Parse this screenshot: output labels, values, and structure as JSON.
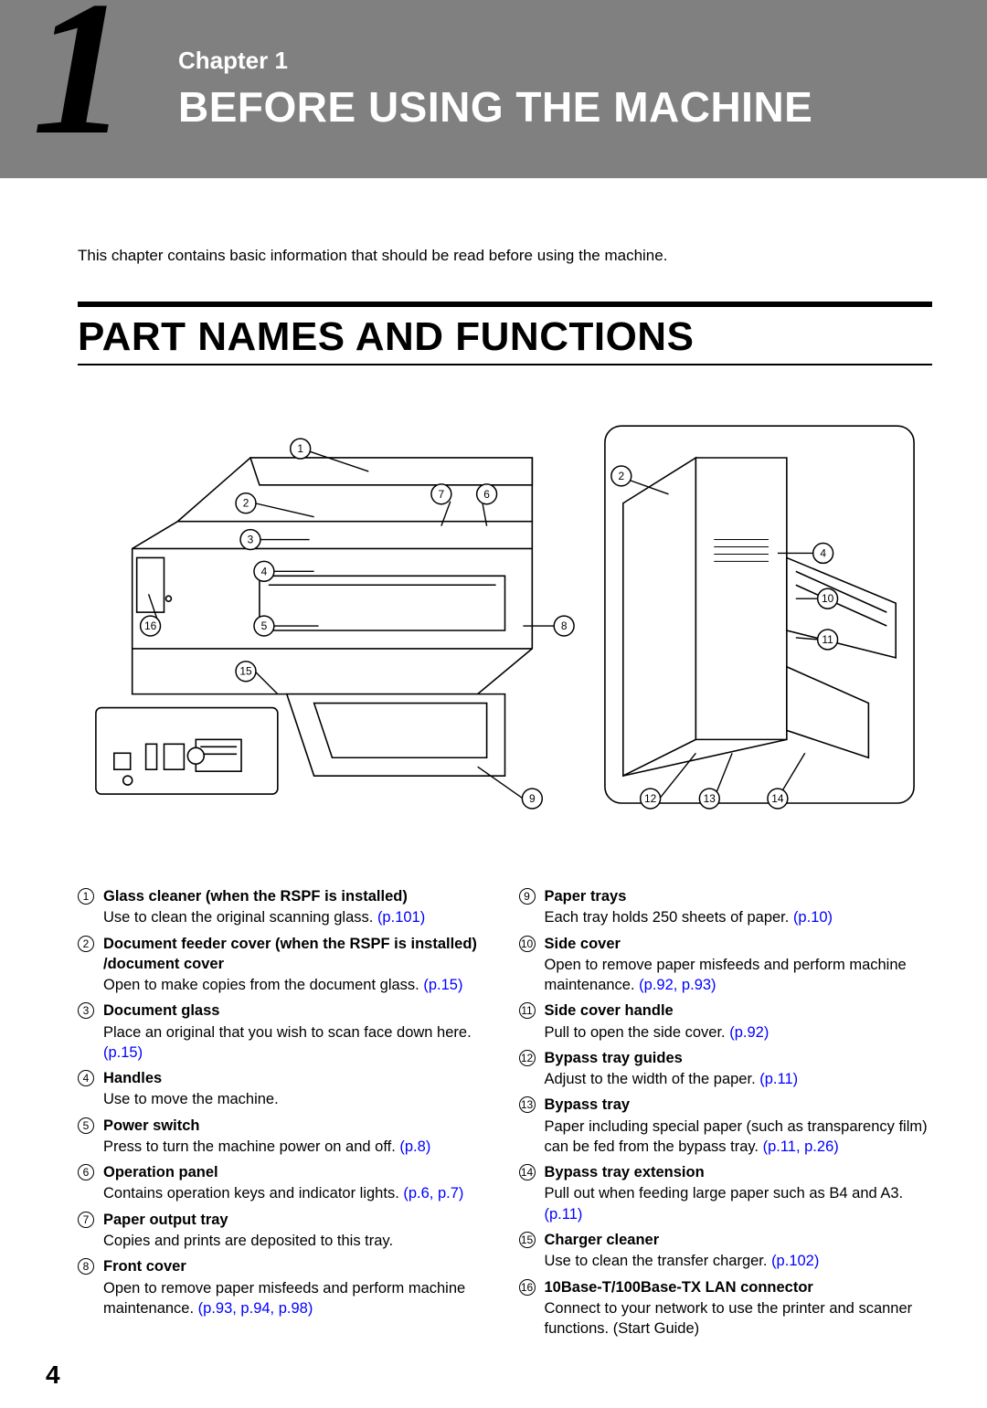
{
  "header": {
    "big_number": "1",
    "chapter_label": "Chapter 1",
    "chapter_title": "BEFORE USING THE MACHINE"
  },
  "intro": "This chapter contains basic information that should be read before using the machine.",
  "section_title": "PART NAMES AND FUNCTIONS",
  "page_number": "4",
  "link_color": "#0000ff",
  "diagram": {
    "callouts_left": [
      "1",
      "2",
      "3",
      "4",
      "5",
      "7",
      "6",
      "8",
      "9",
      "15",
      "16"
    ],
    "callouts_right": [
      "2",
      "4",
      "10",
      "11",
      "12",
      "13",
      "14"
    ]
  },
  "items_left": [
    {
      "n": "1",
      "title": "Glass cleaner (when the RSPF is installed)",
      "desc": "Use to clean the original scanning glass. ",
      "link": "(p.101)"
    },
    {
      "n": "2",
      "title": "Document feeder cover (when the RSPF is installed) /document cover",
      "desc": "Open to make copies from the document glass. ",
      "link": "(p.15)"
    },
    {
      "n": "3",
      "title": "Document glass",
      "desc": "Place an original that you wish to scan face down here. ",
      "link": "(p.15)"
    },
    {
      "n": "4",
      "title": "Handles",
      "desc": "Use to move the machine.",
      "link": ""
    },
    {
      "n": "5",
      "title": "Power switch",
      "desc": "Press to turn the machine power on and off. ",
      "link": "(p.8)"
    },
    {
      "n": "6",
      "title": "Operation panel",
      "desc": "Contains operation keys and indicator lights. ",
      "link": "(p.6, p.7)"
    },
    {
      "n": "7",
      "title": "Paper output tray",
      "desc": "Copies and prints are deposited to this tray.",
      "link": ""
    },
    {
      "n": "8",
      "title": "Front cover",
      "desc": "Open to remove paper misfeeds and perform machine maintenance. ",
      "link": "(p.93, p.94, p.98)"
    }
  ],
  "items_right": [
    {
      "n": "9",
      "title": "Paper trays",
      "desc": "Each tray holds 250 sheets of paper. ",
      "link": "(p.10)"
    },
    {
      "n": "10",
      "title": "Side cover",
      "desc": "Open to remove paper misfeeds and perform machine maintenance. ",
      "link": "(p.92, p.93)"
    },
    {
      "n": "11",
      "title": "Side cover handle",
      "desc": "Pull to open the side cover. ",
      "link": "(p.92)"
    },
    {
      "n": "12",
      "title": "Bypass tray guides",
      "desc": "Adjust to the width of the paper. ",
      "link": "(p.11)"
    },
    {
      "n": "13",
      "title": "Bypass tray",
      "desc": "Paper including special paper (such as transparency film) can be fed from the bypass tray. ",
      "link": "(p.11, p.26)"
    },
    {
      "n": "14",
      "title": "Bypass tray extension",
      "desc": "Pull out when feeding large paper such as B4 and A3. ",
      "link": "(p.11)"
    },
    {
      "n": "15",
      "title": "Charger cleaner",
      "desc": "Use to clean the transfer charger. ",
      "link": "(p.102)"
    },
    {
      "n": "16",
      "title": "10Base-T/100Base-TX LAN connector",
      "desc": "Connect to your network to use the printer and scanner functions. (Start Guide)",
      "link": ""
    }
  ]
}
